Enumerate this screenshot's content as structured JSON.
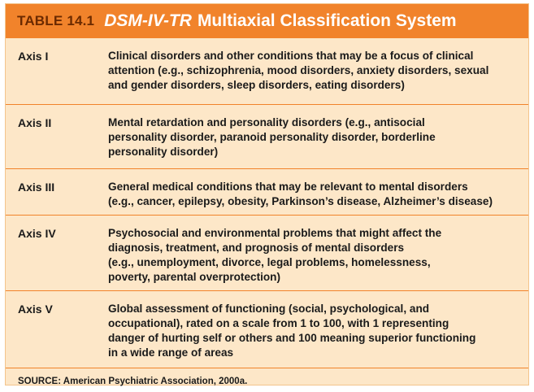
{
  "table": {
    "label": "TABLE 14.1",
    "title_italic": "DSM-IV-TR",
    "title_rest": "Multiaxial Classification System",
    "rows": [
      {
        "axis": "Axis I",
        "description": "Clinical disorders and other conditions that may be a focus of clinical\nattention (e.g., schizophrenia, mood disorders, anxiety disorders, sexual\nand gender disorders, sleep disorders, eating disorders)"
      },
      {
        "axis": "Axis II",
        "description": "Mental retardation and personality disorders (e.g., antisocial\npersonality disorder, paranoid personality disorder, borderline\npersonality disorder)"
      },
      {
        "axis": "Axis III",
        "description": "General medical conditions that may be relevant to mental disorders\n(e.g., cancer, epilepsy, obesity, Parkinson’s disease, Alzheimer’s disease)"
      },
      {
        "axis": "Axis IV",
        "description": "Psychosocial and environmental problems that might affect the\ndiagnosis, treatment, and prognosis of mental disorders\n(e.g., unemployment, divorce, legal problems, homelessness,\npoverty, parental overprotection)"
      },
      {
        "axis": "Axis V",
        "description": "Global assessment of functioning (social, psychological, and\noccupational), rated on a scale from 1 to 100, with 1 representing\ndanger of hurting self or others and 100 meaning superior functioning\nin a wide range of areas"
      }
    ],
    "source": "SOURCE:  American Psychiatric Association, 2000a."
  },
  "colors": {
    "header_bg": "#f1832b",
    "body_bg": "#fde7c8",
    "label_text": "#6b2a00"
  }
}
